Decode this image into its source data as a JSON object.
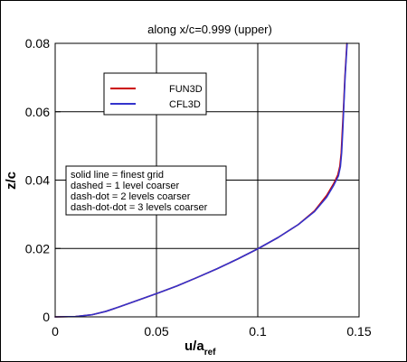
{
  "chart_data": {
    "type": "line",
    "title": "along x/c=0.999 (upper)",
    "xlabel": "u/a",
    "xlabel_sub": "ref",
    "ylabel": "z/c",
    "xlim": [
      0,
      0.15
    ],
    "ylim": [
      0,
      0.08
    ],
    "xticks": [
      "0",
      "0.05",
      "0.1",
      "0.15"
    ],
    "yticks": [
      "0",
      "0.02",
      "0.04",
      "0.06",
      "0.08"
    ],
    "grid": true,
    "legend_position": "upper-left",
    "series": [
      {
        "name": "FUN3D",
        "color": "#cc0000",
        "points": [
          [
            0.0,
            0.0
          ],
          [
            0.01,
            0.0001
          ],
          [
            0.018,
            0.0006
          ],
          [
            0.025,
            0.0016
          ],
          [
            0.032,
            0.003
          ],
          [
            0.04,
            0.0047
          ],
          [
            0.05,
            0.0068
          ],
          [
            0.06,
            0.009
          ],
          [
            0.07,
            0.0115
          ],
          [
            0.08,
            0.0141
          ],
          [
            0.09,
            0.0169
          ],
          [
            0.1,
            0.0199
          ],
          [
            0.11,
            0.0232
          ],
          [
            0.12,
            0.027
          ],
          [
            0.128,
            0.031
          ],
          [
            0.134,
            0.0355
          ],
          [
            0.1375,
            0.039
          ],
          [
            0.1395,
            0.0415
          ],
          [
            0.1405,
            0.044
          ],
          [
            0.1412,
            0.048
          ],
          [
            0.1418,
            0.055
          ],
          [
            0.1424,
            0.062
          ],
          [
            0.143,
            0.07
          ],
          [
            0.1435,
            0.075
          ],
          [
            0.144,
            0.08
          ]
        ]
      },
      {
        "name": "CFL3D",
        "color": "#3333cc",
        "points": [
          [
            0.0,
            0.0
          ],
          [
            0.01,
            0.0001
          ],
          [
            0.018,
            0.0006
          ],
          [
            0.025,
            0.0016
          ],
          [
            0.032,
            0.003
          ],
          [
            0.04,
            0.0047
          ],
          [
            0.05,
            0.0068
          ],
          [
            0.06,
            0.009
          ],
          [
            0.07,
            0.0115
          ],
          [
            0.08,
            0.0141
          ],
          [
            0.09,
            0.0169
          ],
          [
            0.1,
            0.0199
          ],
          [
            0.11,
            0.0232
          ],
          [
            0.12,
            0.027
          ],
          [
            0.128,
            0.0308
          ],
          [
            0.134,
            0.035
          ],
          [
            0.1375,
            0.0385
          ],
          [
            0.1398,
            0.0412
          ],
          [
            0.1408,
            0.044
          ],
          [
            0.1414,
            0.048
          ],
          [
            0.142,
            0.055
          ],
          [
            0.1425,
            0.062
          ],
          [
            0.1431,
            0.07
          ],
          [
            0.1436,
            0.075
          ],
          [
            0.1441,
            0.08
          ]
        ]
      }
    ],
    "annotation_lines": [
      "solid line = finest grid",
      "dashed = 1 level coarser",
      "dash-dot = 2 levels coarser",
      "dash-dot-dot = 3 levels coarser"
    ]
  }
}
